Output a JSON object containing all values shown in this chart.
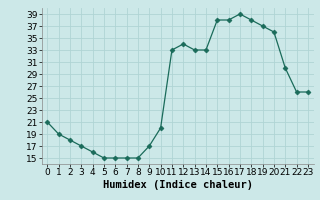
{
  "x": [
    0,
    1,
    2,
    3,
    4,
    5,
    6,
    7,
    8,
    9,
    10,
    11,
    12,
    13,
    14,
    15,
    16,
    17,
    18,
    19,
    20,
    21,
    22,
    23
  ],
  "y": [
    21,
    19,
    18,
    17,
    16,
    15,
    15,
    15,
    15,
    17,
    20,
    33,
    34,
    33,
    33,
    38,
    38,
    39,
    38,
    37,
    36,
    30,
    26,
    26
  ],
  "line_color": "#1a6b5a",
  "marker": "D",
  "marker_size": 2.5,
  "bg_color": "#cce8e8",
  "grid_color": "#b0d4d4",
  "xlabel": "Humidex (Indice chaleur)",
  "xlim": [
    -0.5,
    23.5
  ],
  "ylim": [
    14,
    40
  ],
  "yticks": [
    15,
    17,
    19,
    21,
    23,
    25,
    27,
    29,
    31,
    33,
    35,
    37,
    39
  ],
  "xticks": [
    0,
    1,
    2,
    3,
    4,
    5,
    6,
    7,
    8,
    9,
    10,
    11,
    12,
    13,
    14,
    15,
    16,
    17,
    18,
    19,
    20,
    21,
    22,
    23
  ],
  "xlabel_fontsize": 7.5,
  "tick_fontsize": 6.5
}
